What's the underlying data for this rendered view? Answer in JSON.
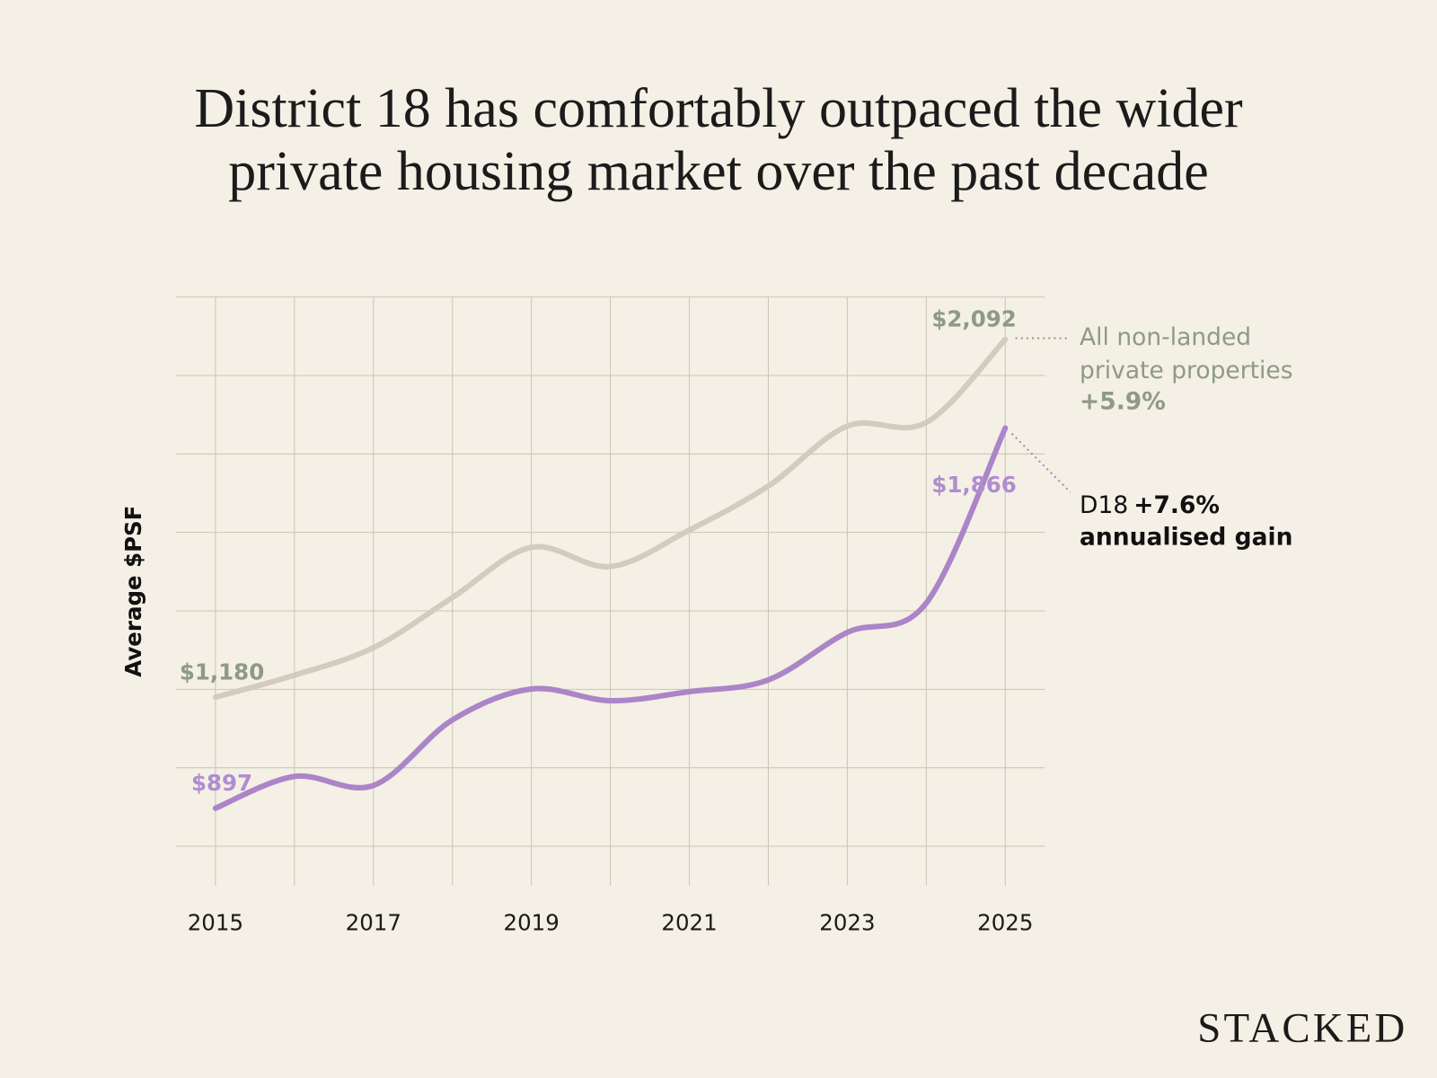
{
  "chart_data": {
    "type": "line",
    "title": "District 18 has comfortably outpaced the wider private housing market over the past decade",
    "y_label": "Average $PSF",
    "x": [
      2015,
      2016,
      2017,
      2018,
      2019,
      2020,
      2021,
      2022,
      2023,
      2024,
      2025
    ],
    "xlim": [
      2014.5,
      2025.5
    ],
    "xticks": [
      2015,
      2017,
      2019,
      2021,
      2023,
      2025
    ],
    "ylim": [
      700,
      2200
    ],
    "yticks": [
      800,
      1000,
      1200,
      1400,
      1600,
      1800,
      2000,
      2200
    ],
    "grid": true,
    "series": [
      {
        "name": "All non-landed private properties",
        "color": "#d3cbbd",
        "label_color": "#8e9a86",
        "values": [
          1180,
          1236,
          1306,
          1434,
          1562,
          1513,
          1606,
          1718,
          1871,
          1880,
          2092
        ],
        "value_labels": [
          "$1,180",
          null,
          null,
          null,
          null,
          null,
          null,
          null,
          null,
          null,
          "$2,092"
        ]
      },
      {
        "name": "D18",
        "color": "#ab85c8",
        "label_color": "#b08dd0",
        "values": [
          897,
          978,
          955,
          1122,
          1201,
          1171,
          1194,
          1224,
          1345,
          1420,
          1866
        ],
        "value_labels": [
          "$897",
          null,
          null,
          null,
          null,
          null,
          null,
          null,
          null,
          null,
          "$1,866"
        ]
      }
    ],
    "annotations": [
      {
        "lines": [
          "All non-landed",
          "private properties",
          "+5.9%"
        ]
      },
      {
        "lines": [
          "D18",
          "+7.6%",
          "annualised gain"
        ]
      }
    ],
    "brand": "STACKED"
  }
}
